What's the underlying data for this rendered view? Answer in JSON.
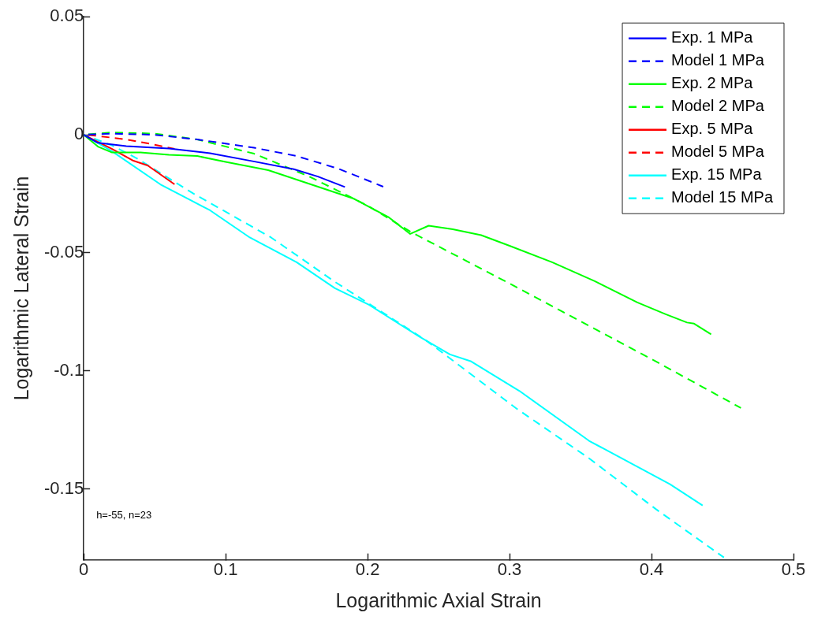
{
  "chart_data": {
    "type": "line",
    "xlabel": "Logarithmic Axial Strain",
    "ylabel": "Logarithmic Lateral Strain",
    "xlim": [
      0,
      0.5
    ],
    "xticks": [
      0,
      0.1,
      0.2,
      0.3,
      0.4,
      0.5
    ],
    "ylim": [
      -0.18,
      0.05
    ],
    "yticks": [
      0.05,
      0,
      -0.05,
      -0.1,
      -0.15
    ],
    "grid": false,
    "legend": "top right",
    "marker": "none",
    "annotations": [
      "h=-55, n=23"
    ],
    "series": [
      {
        "name": "Exp. 1 MPa",
        "color": "#0000ff",
        "line_style": "solid",
        "x": [
          0,
          0.01,
          0.03,
          0.06,
          0.089,
          0.119,
          0.148,
          0.165,
          0.184
        ],
        "values": [
          0,
          -0.0034,
          -0.0048,
          -0.0058,
          -0.0078,
          -0.0112,
          -0.0146,
          -0.0177,
          -0.0221
        ]
      },
      {
        "name": "Model 1 MPa",
        "color": "#0000ff",
        "line_style": "dashed",
        "x": [
          0,
          0.02,
          0.05,
          0.08,
          0.12,
          0.15,
          0.18,
          0.211
        ],
        "values": [
          0,
          0.0005,
          0,
          -0.002,
          -0.0055,
          -0.009,
          -0.0145,
          -0.022
        ]
      },
      {
        "name": "Exp. 2 MPa",
        "color": "#00ff00",
        "line_style": "solid",
        "x": [
          0,
          0.01,
          0.02,
          0.04,
          0.06,
          0.08,
          0.1,
          0.13,
          0.16,
          0.19,
          0.215,
          0.23,
          0.243,
          0.26,
          0.28,
          0.3,
          0.33,
          0.36,
          0.39,
          0.41,
          0.425,
          0.43,
          0.442
        ],
        "values": [
          0,
          -0.005,
          -0.0075,
          -0.0075,
          -0.0085,
          -0.009,
          -0.0115,
          -0.015,
          -0.021,
          -0.027,
          -0.035,
          -0.042,
          -0.0385,
          -0.04,
          -0.0425,
          -0.047,
          -0.054,
          -0.062,
          -0.071,
          -0.076,
          -0.0795,
          -0.08,
          -0.0845
        ]
      },
      {
        "name": "Model 2 MPa",
        "color": "#00ff00",
        "line_style": "dashed",
        "x": [
          0,
          0.02,
          0.05,
          0.08,
          0.12,
          0.16,
          0.2,
          0.23,
          0.3,
          0.35,
          0.4,
          0.463
        ],
        "values": [
          0,
          0.001,
          0.0005,
          -0.002,
          -0.008,
          -0.018,
          -0.03,
          -0.041,
          -0.063,
          -0.079,
          -0.095,
          -0.1157
        ]
      },
      {
        "name": "Exp. 5 MPa",
        "color": "#ff0000",
        "line_style": "solid",
        "x": [
          0,
          0.02,
          0.035,
          0.045,
          0.064
        ],
        "values": [
          0,
          -0.006,
          -0.011,
          -0.013,
          -0.021
        ]
      },
      {
        "name": "Model 5 MPa",
        "color": "#ff0000",
        "line_style": "dashed",
        "x": [
          0,
          0.01,
          0.03,
          0.05,
          0.064
        ],
        "values": [
          0,
          -0.0005,
          -0.002,
          -0.0042,
          -0.006
        ]
      },
      {
        "name": "Exp. 15 MPa",
        "color": "#00ffff",
        "line_style": "solid",
        "x": [
          0,
          0.02,
          0.054,
          0.089,
          0.117,
          0.15,
          0.177,
          0.201,
          0.237,
          0.258,
          0.273,
          0.307,
          0.356,
          0.413,
          0.436
        ],
        "values": [
          0,
          -0.007,
          -0.021,
          -0.032,
          -0.0435,
          -0.054,
          -0.065,
          -0.072,
          -0.0857,
          -0.093,
          -0.096,
          -0.1085,
          -0.1296,
          -0.148,
          -0.157
        ]
      },
      {
        "name": "Model 15 MPa",
        "color": "#00ffff",
        "line_style": "dashed",
        "x": [
          0,
          0.02,
          0.038,
          0.077,
          0.132,
          0.177,
          0.241,
          0.305,
          0.356,
          0.403,
          0.451
        ],
        "values": [
          0,
          -0.0045,
          -0.0102,
          -0.0248,
          -0.0435,
          -0.0623,
          -0.087,
          -0.116,
          -0.137,
          -0.1585,
          -0.179
        ]
      }
    ]
  }
}
